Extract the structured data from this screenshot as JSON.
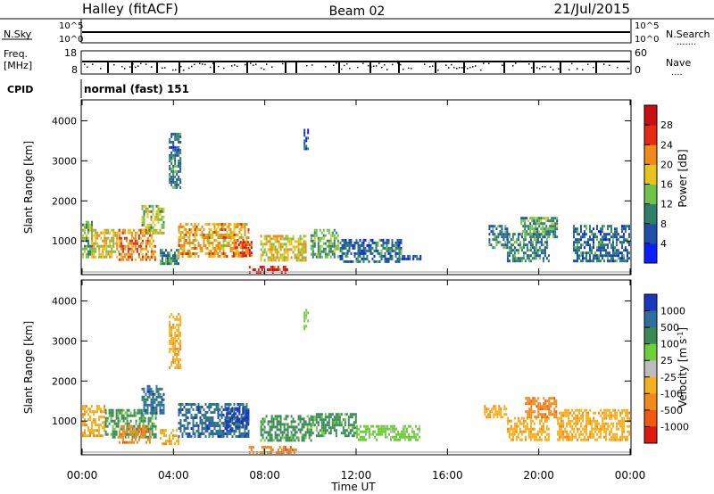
{
  "header": {
    "title": "Halley (fitACF)",
    "beam": "Beam 02",
    "date": "21/Jul/2015"
  },
  "top_panels": {
    "nsky": {
      "label": "N.Sky",
      "ticks_left": [
        "10^5",
        "10^0"
      ],
      "ticks_right": [
        "10^5",
        "10^0"
      ],
      "right_label": "N.Search",
      "right_dots": "......."
    },
    "freq": {
      "label_lines": [
        "Freq.",
        "[MHz]"
      ],
      "ticks_left": [
        "18",
        "8"
      ],
      "ticks_right": [
        "60",
        "0"
      ],
      "right_label": "Nave",
      "right_dots": "...."
    },
    "cpid": {
      "label": "CPID",
      "text": "normal (fast) 151"
    }
  },
  "chart_data": [
    {
      "type": "heatmap",
      "title": "",
      "xlabel": "",
      "ylabel": "Slant Range [km]",
      "x_ticks": [
        "00:00",
        "04:00",
        "08:00",
        "12:00",
        "16:00",
        "20:00",
        "00:00"
      ],
      "xlim_hours": [
        0,
        24
      ],
      "y_ticks": [
        1000,
        2000,
        3000,
        4000
      ],
      "ylim_km": [
        180,
        4500
      ],
      "colorbar": {
        "label": "Power [dB]",
        "tick_labels": [
          "4",
          "8",
          "12",
          "16",
          "20",
          "24",
          "28"
        ],
        "range": [
          0,
          30
        ],
        "colors": [
          "#0a1eff",
          "#1f4fa8",
          "#2f7f6a",
          "#6fc24a",
          "#e6c41e",
          "#f08a1a",
          "#e82a14",
          "#c81010"
        ]
      },
      "regions": [
        {
          "x": [
            0.0,
            0.4
          ],
          "y": [
            600,
            1500
          ],
          "value": 14
        },
        {
          "x": [
            0.4,
            1.6
          ],
          "y": [
            600,
            1300
          ],
          "value": 18
        },
        {
          "x": [
            1.6,
            3.2
          ],
          "y": [
            520,
            1300
          ],
          "value": 22
        },
        {
          "x": [
            2.6,
            3.6
          ],
          "y": [
            1200,
            1900
          ],
          "value": 16
        },
        {
          "x": [
            3.4,
            4.2
          ],
          "y": [
            420,
            800
          ],
          "value": 10
        },
        {
          "x": [
            4.2,
            7.3
          ],
          "y": [
            600,
            1450
          ],
          "value": 20
        },
        {
          "x": [
            6.6,
            7.4
          ],
          "y": [
            650,
            1000
          ],
          "value": 26
        },
        {
          "x": [
            7.3,
            9.0
          ],
          "y": [
            230,
            380
          ],
          "value": 28
        },
        {
          "x": [
            7.8,
            9.8
          ],
          "y": [
            500,
            1150
          ],
          "value": 18
        },
        {
          "x": [
            10.0,
            11.2
          ],
          "y": [
            600,
            1300
          ],
          "value": 13
        },
        {
          "x": [
            11.2,
            14.0
          ],
          "y": [
            500,
            1050
          ],
          "value": 8
        },
        {
          "x": [
            14.0,
            14.8
          ],
          "y": [
            550,
            650
          ],
          "value": 6
        },
        {
          "x": [
            17.8,
            18.6
          ],
          "y": [
            800,
            1400
          ],
          "value": 9
        },
        {
          "x": [
            18.6,
            20.4
          ],
          "y": [
            500,
            1200
          ],
          "value": 10
        },
        {
          "x": [
            19.2,
            20.8
          ],
          "y": [
            1100,
            1600
          ],
          "value": 12
        },
        {
          "x": [
            21.5,
            24.0
          ],
          "y": [
            500,
            1400
          ],
          "value": 8
        },
        {
          "x": [
            3.8,
            4.3
          ],
          "y": [
            2300,
            3700
          ],
          "value": 8
        },
        {
          "x": [
            9.7,
            9.9
          ],
          "y": [
            3300,
            3800
          ],
          "value": 6
        }
      ]
    },
    {
      "type": "heatmap",
      "title": "",
      "xlabel": "Time UT",
      "ylabel": "Slant Range [km]",
      "x_ticks": [
        "00:00",
        "04:00",
        "08:00",
        "12:00",
        "16:00",
        "20:00",
        "00:00"
      ],
      "xlim_hours": [
        0,
        24
      ],
      "y_ticks": [
        1000,
        2000,
        3000,
        4000
      ],
      "ylim_km": [
        180,
        4500
      ],
      "colorbar": {
        "label": "Velocity [m s^-1]",
        "tick_labels": [
          "1000",
          "500",
          "100",
          "25",
          "-25",
          "-100",
          "-500",
          "-1000"
        ],
        "colors": [
          "#1a37c0",
          "#2f6fa0",
          "#3a8a55",
          "#6fcf3a",
          "#bdbdbd",
          "#f5b020",
          "#f08a1a",
          "#f05a10",
          "#e01a10"
        ]
      },
      "regions": [
        {
          "x": [
            0.0,
            1.0
          ],
          "y": [
            600,
            1400
          ],
          "value": -100
        },
        {
          "x": [
            1.0,
            3.2
          ],
          "y": [
            600,
            1300
          ],
          "value": 100
        },
        {
          "x": [
            1.6,
            3.0
          ],
          "y": [
            450,
            900
          ],
          "value": -500
        },
        {
          "x": [
            2.6,
            3.6
          ],
          "y": [
            1200,
            1900
          ],
          "value": 500
        },
        {
          "x": [
            3.4,
            4.2
          ],
          "y": [
            400,
            800
          ],
          "value": -100
        },
        {
          "x": [
            4.2,
            7.3
          ],
          "y": [
            600,
            1450
          ],
          "value": 500
        },
        {
          "x": [
            6.3,
            7.3
          ],
          "y": [
            800,
            1350
          ],
          "value": 1000
        },
        {
          "x": [
            7.3,
            9.4
          ],
          "y": [
            230,
            380
          ],
          "value": -500
        },
        {
          "x": [
            7.8,
            10.0
          ],
          "y": [
            500,
            1150
          ],
          "value": 100
        },
        {
          "x": [
            10.0,
            12.0
          ],
          "y": [
            600,
            1200
          ],
          "value": 100
        },
        {
          "x": [
            12.0,
            14.8
          ],
          "y": [
            500,
            900
          ],
          "value": 25
        },
        {
          "x": [
            17.6,
            18.6
          ],
          "y": [
            1100,
            1400
          ],
          "value": -100
        },
        {
          "x": [
            18.6,
            20.4
          ],
          "y": [
            500,
            1100
          ],
          "value": -100
        },
        {
          "x": [
            19.4,
            20.8
          ],
          "y": [
            1100,
            1600
          ],
          "value": -500
        },
        {
          "x": [
            20.8,
            24.0
          ],
          "y": [
            500,
            1300
          ],
          "value": -100
        },
        {
          "x": [
            3.8,
            4.3
          ],
          "y": [
            2300,
            3700
          ],
          "value": -100
        },
        {
          "x": [
            9.7,
            9.9
          ],
          "y": [
            3300,
            3800
          ],
          "value": 25
        }
      ]
    }
  ]
}
